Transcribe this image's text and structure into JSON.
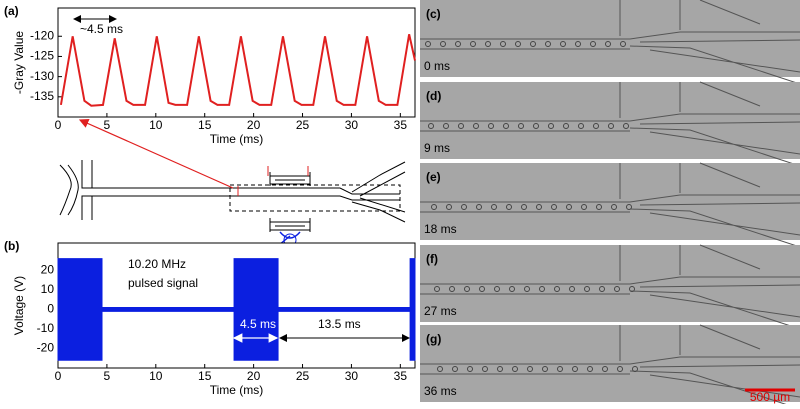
{
  "chart_data": [
    {
      "type": "line",
      "panel": "(a)",
      "ylabel": "-Gray Value",
      "xlabel": "Time (ms)",
      "annotation": "~4.5 ms",
      "xlim": [
        0,
        36.5
      ],
      "ylim": [
        -140,
        -113
      ],
      "xticks": [
        0,
        5,
        10,
        15,
        20,
        25,
        30,
        35
      ],
      "yticks": [
        -135,
        -130,
        -125,
        -120
      ],
      "color": "#e02020",
      "x": [
        0.3,
        1.5,
        2.7,
        3.4,
        4.6,
        5.8,
        7.0,
        7.7,
        8.9,
        10.1,
        11.3,
        12.0,
        13.2,
        14.4,
        15.6,
        16.3,
        17.5,
        18.7,
        19.9,
        20.6,
        21.8,
        23.0,
        24.2,
        24.9,
        26.1,
        27.3,
        28.5,
        29.2,
        30.4,
        31.6,
        32.8,
        33.5,
        34.7,
        35.9,
        36.5
      ],
      "values": [
        -137,
        -120,
        -136,
        -137.2,
        -137,
        -120.5,
        -136,
        -137,
        -137,
        -120,
        -136.5,
        -137,
        -137,
        -120,
        -136,
        -137,
        -137,
        -120,
        -136,
        -137,
        -137,
        -120,
        -136,
        -137,
        -137,
        -120,
        -136,
        -137,
        -137,
        -120,
        -136,
        -137,
        -137,
        -119.5,
        -126
      ]
    },
    {
      "type": "envelope",
      "panel": "(b)",
      "ylabel": "Voltage (V)",
      "xlabel": "Time (ms)",
      "annotations": [
        "10.20 MHz",
        "pulsed signal",
        "4.5 ms",
        "13.5 ms"
      ],
      "xlim": [
        0,
        36.5
      ],
      "ylim": [
        -30,
        34
      ],
      "xticks": [
        0,
        5,
        10,
        15,
        20,
        25,
        30,
        35
      ],
      "yticks": [
        -20,
        -10,
        0,
        10,
        20
      ],
      "color": "#0b1fe0",
      "x": [
        0,
        4.5,
        4.5,
        18.0,
        18.0,
        22.5,
        22.5,
        36.0,
        36.0,
        36.5
      ],
      "upper": [
        26,
        26,
        1,
        1,
        26,
        26,
        1,
        1,
        26,
        26
      ],
      "lower": [
        -26,
        -26,
        -1,
        -1,
        -26,
        -26,
        -1,
        -1,
        -26,
        -26
      ]
    }
  ],
  "panels": [
    {
      "label": "(c)",
      "time": "0 ms"
    },
    {
      "label": "(d)",
      "time": "9 ms"
    },
    {
      "label": "(e)",
      "time": "18 ms"
    },
    {
      "label": "(f)",
      "time": "27 ms"
    },
    {
      "label": "(g)",
      "time": "36 ms"
    }
  ],
  "scale_bar": "500 µm"
}
